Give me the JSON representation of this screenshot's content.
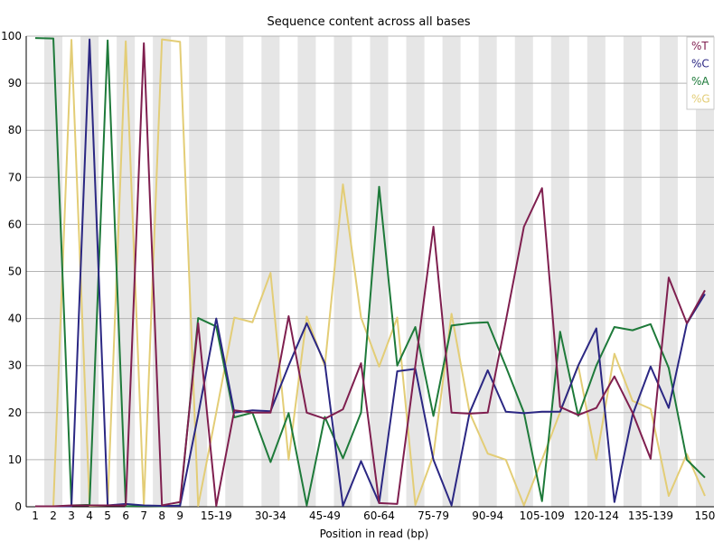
{
  "chart_data": {
    "type": "line",
    "title": "Sequence content across all bases",
    "xlabel": "Position in read (bp)",
    "ylabel": "",
    "ylim": [
      0,
      100
    ],
    "yticks": [
      0,
      10,
      20,
      30,
      40,
      50,
      60,
      70,
      80,
      90,
      100
    ],
    "categories": [
      "1",
      "2",
      "3",
      "4",
      "5",
      "6",
      "7",
      "8",
      "9",
      "10-14",
      "15-19",
      "20-24",
      "25-29",
      "30-34",
      "35-39",
      "40-44",
      "45-49",
      "50-54",
      "55-59",
      "60-64",
      "65-69",
      "70-74",
      "75-79",
      "80-84",
      "85-89",
      "90-94",
      "95-99",
      "100-104",
      "105-109",
      "110-114",
      "115-119",
      "120-124",
      "125-129",
      "130-134",
      "135-139",
      "140-144",
      "145-149",
      "150"
    ],
    "category_labels": [
      "1",
      "2",
      "3",
      "4",
      "5",
      "6",
      "7",
      "8",
      "9",
      "",
      "15-19",
      "",
      "",
      "30-34",
      "",
      "",
      "45-49",
      "",
      "",
      "60-64",
      "",
      "",
      "75-79",
      "",
      "",
      "90-94",
      "",
      "",
      "105-109",
      "",
      "",
      "120-124",
      "",
      "",
      "135-139",
      "",
      "",
      "150"
    ],
    "legend_position": "top-right",
    "grid": "horizontal lines with alternating vertical bands",
    "series": [
      {
        "name": "%T",
        "color": "#7f1f4f",
        "values": [
          0.1,
          0.1,
          0.3,
          0.3,
          0.3,
          0.3,
          98.5,
          0.3,
          1.0,
          39.0,
          0.2,
          20.5,
          20.0,
          20.0,
          40.5,
          20.0,
          18.7,
          20.7,
          30.5,
          0.8,
          0.6,
          30.0,
          59.5,
          20.0,
          19.8,
          20.0,
          39.5,
          59.5,
          67.7,
          21.2,
          19.5,
          21.0,
          27.7,
          20.0,
          10.2,
          48.7,
          39.0,
          46.0
        ]
      },
      {
        "name": "%C",
        "color": "#2b2783",
        "values": [
          0.1,
          0.1,
          0.1,
          99.3,
          0.3,
          0.6,
          0.3,
          0.2,
          0.2,
          19.5,
          40.0,
          20.0,
          20.5,
          20.3,
          30.0,
          39.0,
          30.5,
          0.2,
          9.7,
          0.8,
          28.8,
          29.3,
          10.0,
          0.3,
          20.0,
          29.0,
          20.2,
          19.9,
          20.2,
          20.2,
          30.0,
          37.9,
          1.0,
          19.5,
          29.8,
          21.0,
          38.9,
          45.2
        ]
      },
      {
        "name": "%A",
        "color": "#1e7a3a",
        "values": [
          99.6,
          99.5,
          0.3,
          0.4,
          99.1,
          0.1,
          0.2,
          0.1,
          0.3,
          40.1,
          38.3,
          19.0,
          20.0,
          9.5,
          19.9,
          0.3,
          19.1,
          10.3,
          20.0,
          68.0,
          30.0,
          38.2,
          19.3,
          38.5,
          39.0,
          39.2,
          29.8,
          20.0,
          1.2,
          37.2,
          19.3,
          30.0,
          38.2,
          37.5,
          38.8,
          29.5,
          10.0,
          6.2
        ]
      },
      {
        "name": "%G",
        "color": "#e3cd76",
        "values": [
          0.1,
          0.1,
          99.2,
          0.2,
          0.3,
          98.9,
          0.3,
          99.3,
          98.8,
          0.2,
          20.0,
          40.2,
          39.2,
          49.7,
          10.0,
          40.4,
          29.9,
          68.5,
          40.2,
          29.8,
          40.2,
          0.4,
          11.0,
          41.0,
          20.0,
          11.3,
          10.0,
          0.3,
          10.0,
          20.1,
          30.0,
          10.0,
          32.5,
          22.5,
          20.8,
          2.3,
          11.2,
          2.3
        ]
      }
    ]
  }
}
